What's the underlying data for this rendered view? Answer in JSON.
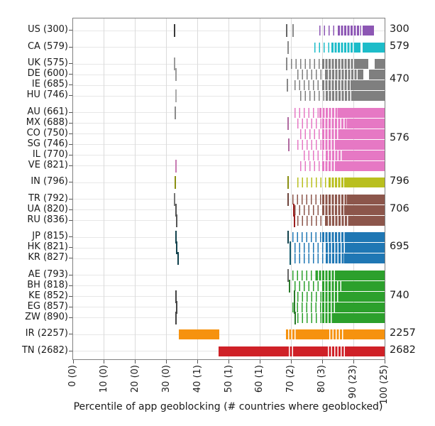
{
  "chart_data": {
    "type": "bar",
    "subtype": "horizontal-percentile-rug-strips",
    "title": "",
    "xlabel": "Percentile of app geoblocking (# countries where geoblocked)",
    "xlim": [
      0,
      100
    ],
    "grid": true,
    "x_ticks": [
      {
        "pos": 0,
        "label": "0 (0)"
      },
      {
        "pos": 10,
        "label": "10 (0)"
      },
      {
        "pos": 20,
        "label": "20 (0)"
      },
      {
        "pos": 30,
        "label": "30 (0)"
      },
      {
        "pos": 40,
        "label": "40 (1)"
      },
      {
        "pos": 50,
        "label": "50 (1)"
      },
      {
        "pos": 60,
        "label": "60 (1)"
      },
      {
        "pos": 70,
        "label": "70 (2)"
      },
      {
        "pos": 80,
        "label": "80 (3)"
      },
      {
        "pos": 90,
        "label": "90 (23)"
      },
      {
        "pos": 100,
        "label": "100 (25)"
      }
    ],
    "rows": [
      {
        "code": "US",
        "label": "US (300)",
        "apps": 300,
        "group": "US",
        "color": "#8d57b4",
        "ticks": [
          {
            "p": 32.5,
            "color": "#3a3a3a"
          },
          {
            "p": 68.5,
            "color": "#666666"
          },
          {
            "p": 70.6,
            "color": "#8a8a8a"
          }
        ],
        "segments": [
          {
            "from": 79,
            "to": 84.5,
            "style": "sparse"
          },
          {
            "from": 85,
            "to": 92.5,
            "style": "dense"
          },
          {
            "from": 93,
            "to": 96.5,
            "style": "solid"
          }
        ],
        "gaps": []
      },
      {
        "code": "CA",
        "label": "CA (579)",
        "apps": 579,
        "group": "CA",
        "color": "#1dbcc9",
        "ticks": [
          {
            "p": 69,
            "color": "#8a8a8a"
          }
        ],
        "segments": [
          {
            "from": 77.5,
            "to": 83,
            "style": "sparse"
          },
          {
            "from": 83,
            "to": 90.5,
            "style": "dense"
          },
          {
            "from": 90.5,
            "to": 100,
            "style": "solid"
          }
        ],
        "gaps": [
          {
            "from": 92.2,
            "to": 92.9
          }
        ]
      },
      {
        "code": "UK",
        "label": "UK (575)",
        "apps": 575,
        "group": "EU",
        "color": "#7f7f7f",
        "ticks": [
          {
            "p": 32.5,
            "color": "#9a9a9a"
          },
          {
            "p": 68.5,
            "color": "#888888"
          }
        ],
        "segments": [
          {
            "from": 70,
            "to": 80,
            "style": "sparse"
          },
          {
            "from": 80,
            "to": 91,
            "style": "dense"
          },
          {
            "from": 91,
            "to": 100,
            "style": "solid"
          }
        ],
        "gaps": [
          {
            "from": 94.8,
            "to": 96.8
          }
        ]
      },
      {
        "code": "DE",
        "label": "DE (600)",
        "apps": 600,
        "group": "EU",
        "color": "#7f7f7f",
        "ticks": [
          {
            "p": 33,
            "color": "#9a9a9a"
          }
        ],
        "segments": [
          {
            "from": 72,
            "to": 81,
            "style": "sparse"
          },
          {
            "from": 81,
            "to": 91.5,
            "style": "dense"
          },
          {
            "from": 91.5,
            "to": 100,
            "style": "solid"
          }
        ],
        "gaps": [
          {
            "from": 93.2,
            "to": 95
          }
        ]
      },
      {
        "code": "IE",
        "label": "IE (685)",
        "apps": 685,
        "group": "EU",
        "color": "#7f7f7f",
        "ticks": [
          {
            "p": 68.8,
            "color": "#888888"
          }
        ],
        "segments": [
          {
            "from": 71,
            "to": 80,
            "style": "sparse"
          },
          {
            "from": 80,
            "to": 89,
            "style": "dense"
          },
          {
            "from": 89,
            "to": 100,
            "style": "solid"
          }
        ],
        "gaps": []
      },
      {
        "code": "HU",
        "label": "HU (746)",
        "apps": 746,
        "group": "EU",
        "color": "#7f7f7f",
        "ticks": [
          {
            "p": 33,
            "color": "#aaaaaa"
          }
        ],
        "segments": [
          {
            "from": 73,
            "to": 81,
            "style": "sparse"
          },
          {
            "from": 81,
            "to": 90,
            "style": "dense"
          },
          {
            "from": 90,
            "to": 100,
            "style": "solid"
          }
        ],
        "gaps": []
      },
      {
        "code": "AU",
        "label": "AU (661)",
        "apps": 661,
        "group": "LATAM-APAC",
        "color": "#e678c4",
        "ticks": [
          {
            "p": 32.7,
            "color": "#8a8a8a"
          }
        ],
        "segments": [
          {
            "from": 71,
            "to": 79,
            "style": "sparse"
          },
          {
            "from": 79,
            "to": 85,
            "style": "dense"
          },
          {
            "from": 85,
            "to": 100,
            "style": "solid"
          }
        ],
        "gaps": []
      },
      {
        "code": "MX",
        "label": "MX (688)",
        "apps": 688,
        "group": "LATAM-APAC",
        "color": "#e678c4",
        "ticks": [
          {
            "p": 69,
            "color": "#b06aa0"
          }
        ],
        "segments": [
          {
            "from": 72,
            "to": 80,
            "style": "sparse"
          },
          {
            "from": 80,
            "to": 88,
            "style": "dense"
          },
          {
            "from": 88,
            "to": 100,
            "style": "solid"
          }
        ],
        "gaps": []
      },
      {
        "code": "CO",
        "label": "CO (750)",
        "apps": 750,
        "group": "LATAM-APAC",
        "color": "#e678c4",
        "ticks": [],
        "segments": [
          {
            "from": 73,
            "to": 80,
            "style": "sparse"
          },
          {
            "from": 80,
            "to": 85.5,
            "style": "dense"
          },
          {
            "from": 85.5,
            "to": 100,
            "style": "solid"
          }
        ],
        "gaps": []
      },
      {
        "code": "SG",
        "label": "SG (746)",
        "apps": 746,
        "group": "LATAM-APAC",
        "color": "#e678c4",
        "ticks": [
          {
            "p": 69.3,
            "color": "#b06aa0"
          }
        ],
        "segments": [
          {
            "from": 72,
            "to": 80,
            "style": "sparse"
          },
          {
            "from": 80,
            "to": 84.5,
            "style": "dense"
          },
          {
            "from": 84.5,
            "to": 100,
            "style": "solid"
          }
        ],
        "gaps": []
      },
      {
        "code": "IL",
        "label": "IL (770)",
        "apps": 770,
        "group": "LATAM-APAC",
        "color": "#e678c4",
        "ticks": [],
        "segments": [
          {
            "from": 74,
            "to": 81,
            "style": "sparse"
          },
          {
            "from": 81,
            "to": 86.5,
            "style": "dense"
          },
          {
            "from": 86.5,
            "to": 100,
            "style": "solid"
          }
        ],
        "gaps": []
      },
      {
        "code": "VE",
        "label": "VE (821)",
        "apps": 821,
        "group": "LATAM-APAC",
        "color": "#e678c4",
        "ticks": [
          {
            "p": 33,
            "color": "#c77ab2"
          }
        ],
        "segments": [
          {
            "from": 73,
            "to": 80,
            "style": "sparse"
          },
          {
            "from": 80,
            "to": 84,
            "style": "dense"
          },
          {
            "from": 84,
            "to": 100,
            "style": "solid"
          }
        ],
        "gaps": []
      },
      {
        "code": "IN",
        "label": "IN (796)",
        "apps": 796,
        "group": "IN",
        "color": "#b9bf1f",
        "ticks": [
          {
            "p": 32.8,
            "color": "#8a8f12"
          },
          {
            "p": 69,
            "color": "#8a8f12"
          }
        ],
        "segments": [
          {
            "from": 72,
            "to": 82,
            "style": "sparse"
          },
          {
            "from": 82,
            "to": 87,
            "style": "dense"
          },
          {
            "from": 87,
            "to": 100,
            "style": "solid"
          }
        ],
        "gaps": []
      },
      {
        "code": "TR",
        "label": "TR (792)",
        "apps": 792,
        "group": "CIS",
        "color": "#8c564b",
        "ticks": [
          {
            "p": 32.6,
            "color": "#777777"
          },
          {
            "p": 69,
            "color": "#6e443c"
          }
        ],
        "segments": [
          {
            "from": 70.5,
            "to": 80,
            "style": "sparse"
          },
          {
            "from": 80,
            "to": 88,
            "style": "dense"
          },
          {
            "from": 88,
            "to": 100,
            "style": "solid"
          }
        ],
        "gaps": []
      },
      {
        "code": "UA",
        "label": "UA (820)",
        "apps": 820,
        "group": "CIS",
        "color": "#8c564b",
        "ticks": [
          {
            "p": 33,
            "color": "#555555"
          },
          {
            "p": 70.8,
            "color": "#9c1f1f"
          }
        ],
        "segments": [
          {
            "from": 71,
            "to": 80,
            "style": "sparse"
          },
          {
            "from": 80,
            "to": 87,
            "style": "dense"
          },
          {
            "from": 87,
            "to": 100,
            "style": "solid"
          }
        ],
        "gaps": []
      },
      {
        "code": "RU",
        "label": "RU (836)",
        "apps": 836,
        "group": "CIS",
        "color": "#8c564b",
        "ticks": [
          {
            "p": 33.3,
            "color": "#555555"
          },
          {
            "p": 71,
            "color": "#9c1f1f"
          }
        ],
        "segments": [
          {
            "from": 72,
            "to": 81,
            "style": "sparse"
          },
          {
            "from": 81,
            "to": 88.5,
            "style": "dense"
          },
          {
            "from": 88.5,
            "to": 100,
            "style": "solid"
          }
        ],
        "gaps": []
      },
      {
        "code": "JP",
        "label": "JP (815)",
        "apps": 815,
        "group": "EASIA",
        "color": "#1f77b4",
        "ticks": [
          {
            "p": 33,
            "color": "#12424d"
          },
          {
            "p": 69,
            "color": "#12424d"
          }
        ],
        "segments": [
          {
            "from": 70.5,
            "to": 80,
            "style": "sparse"
          },
          {
            "from": 80,
            "to": 87.5,
            "style": "dense"
          },
          {
            "from": 87.5,
            "to": 100,
            "style": "solid"
          }
        ],
        "gaps": []
      },
      {
        "code": "HK",
        "label": "HK (821)",
        "apps": 821,
        "group": "EASIA",
        "color": "#1f77b4",
        "ticks": [
          {
            "p": 33.3,
            "color": "#12424d"
          },
          {
            "p": 69.6,
            "color": "#155e70"
          }
        ],
        "segments": [
          {
            "from": 71,
            "to": 81,
            "style": "sparse"
          },
          {
            "from": 81,
            "to": 88,
            "style": "dense"
          },
          {
            "from": 88,
            "to": 100,
            "style": "solid"
          }
        ],
        "gaps": []
      },
      {
        "code": "KR",
        "label": "KR (827)",
        "apps": 827,
        "group": "EASIA",
        "color": "#1f77b4",
        "ticks": [
          {
            "p": 33.6,
            "color": "#12424d"
          },
          {
            "p": 69.6,
            "color": "#155e70"
          }
        ],
        "segments": [
          {
            "from": 71,
            "to": 81,
            "style": "sparse"
          },
          {
            "from": 81,
            "to": 87,
            "style": "dense"
          },
          {
            "from": 87,
            "to": 100,
            "style": "solid"
          }
        ],
        "gaps": []
      },
      {
        "code": "AE",
        "label": "AE (793)",
        "apps": 793,
        "group": "MEA",
        "color": "#2ca02c",
        "ticks": [
          {
            "p": 69,
            "color": "#666666"
          }
        ],
        "segments": [
          {
            "from": 70.5,
            "to": 78,
            "style": "sparse"
          },
          {
            "from": 78,
            "to": 84.5,
            "style": "dense"
          },
          {
            "from": 84.5,
            "to": 100,
            "style": "solid"
          }
        ],
        "gaps": []
      },
      {
        "code": "BH",
        "label": "BH (818)",
        "apps": 818,
        "group": "MEA",
        "color": "#2ca02c",
        "ticks": [
          {
            "p": 69.5,
            "color": "#2a7a2a"
          }
        ],
        "segments": [
          {
            "from": 71,
            "to": 80,
            "style": "sparse"
          },
          {
            "from": 80,
            "to": 86,
            "style": "dense"
          },
          {
            "from": 86,
            "to": 100,
            "style": "solid"
          }
        ],
        "gaps": []
      },
      {
        "code": "KE",
        "label": "KE (852)",
        "apps": 852,
        "group": "MEA",
        "color": "#2ca02c",
        "ticks": [
          {
            "p": 33,
            "color": "#444444"
          },
          {
            "p": 71,
            "color": "#2a7a2a"
          }
        ],
        "segments": [
          {
            "from": 72,
            "to": 80,
            "style": "sparse"
          },
          {
            "from": 80,
            "to": 85.5,
            "style": "dense"
          },
          {
            "from": 85.5,
            "to": 100,
            "style": "solid"
          }
        ],
        "gaps": []
      },
      {
        "code": "EG",
        "label": "EG (857)",
        "apps": 857,
        "group": "MEA",
        "color": "#2ca02c",
        "ticks": [
          {
            "p": 33.2,
            "color": "#444444"
          },
          {
            "p": 71,
            "color": "#2a7a2a"
          }
        ],
        "segments": [
          {
            "from": 70.5,
            "to": 80,
            "style": "sparse"
          },
          {
            "from": 80,
            "to": 84,
            "style": "dense"
          },
          {
            "from": 84,
            "to": 100,
            "style": "solid"
          }
        ],
        "gaps": []
      },
      {
        "code": "ZW",
        "label": "ZW (890)",
        "apps": 890,
        "group": "MEA",
        "color": "#2ca02c",
        "ticks": [
          {
            "p": 33,
            "color": "#444444"
          },
          {
            "p": 71.2,
            "color": "#2a7a2a"
          }
        ],
        "segments": [
          {
            "from": 72,
            "to": 80,
            "style": "sparse"
          },
          {
            "from": 80,
            "to": 83.5,
            "style": "dense"
          },
          {
            "from": 83.5,
            "to": 100,
            "style": "solid"
          }
        ],
        "gaps": []
      },
      {
        "code": "IR",
        "label": "IR (2257)",
        "apps": 2257,
        "group": "IR",
        "color": "#f6920e",
        "ticks": [],
        "segments": [
          {
            "from": 34,
            "to": 47,
            "style": "solid"
          },
          {
            "from": 68.3,
            "to": 71.5,
            "style": "dense"
          },
          {
            "from": 71.5,
            "to": 81.5,
            "style": "solid"
          },
          {
            "from": 81.5,
            "to": 87,
            "style": "dense"
          },
          {
            "from": 87,
            "to": 100,
            "style": "solid"
          }
        ],
        "gaps": []
      },
      {
        "code": "TN",
        "label": "TN (2682)",
        "apps": 2682,
        "group": "TN",
        "color": "#cf2127",
        "ticks": [],
        "segments": [
          {
            "from": 46.8,
            "to": 68.5,
            "style": "solid"
          },
          {
            "from": 68.5,
            "to": 71,
            "style": "dense"
          },
          {
            "from": 71,
            "to": 81,
            "style": "solid"
          },
          {
            "from": 81,
            "to": 88,
            "style": "dense"
          },
          {
            "from": 88,
            "to": 100,
            "style": "solid"
          }
        ],
        "gaps": []
      }
    ],
    "group_totals": [
      {
        "group": "US",
        "rows": [
          "US"
        ],
        "value": "300"
      },
      {
        "group": "CA",
        "rows": [
          "CA"
        ],
        "value": "579"
      },
      {
        "group": "EU",
        "rows": [
          "UK",
          "DE",
          "IE",
          "HU"
        ],
        "value": "470"
      },
      {
        "group": "LATAM-APAC",
        "rows": [
          "AU",
          "MX",
          "CO",
          "SG",
          "IL",
          "VE"
        ],
        "value": "576"
      },
      {
        "group": "IN",
        "rows": [
          "IN"
        ],
        "value": "796"
      },
      {
        "group": "CIS",
        "rows": [
          "TR",
          "UA",
          "RU"
        ],
        "value": "706"
      },
      {
        "group": "EASIA",
        "rows": [
          "JP",
          "HK",
          "KR"
        ],
        "value": "695"
      },
      {
        "group": "MEA",
        "rows": [
          "AE",
          "BH",
          "KE",
          "EG",
          "ZW"
        ],
        "value": "740"
      },
      {
        "group": "IR",
        "rows": [
          "IR"
        ],
        "value": "2257"
      },
      {
        "group": "TN",
        "rows": [
          "TN"
        ],
        "value": "2682"
      }
    ],
    "style": {
      "frame_color": "#808080",
      "grid_v_color": "#dbdbdb",
      "grid_h_color": "#e7e7e7",
      "tick_color": "#555555",
      "text_color": "#1a1a1a",
      "background": "#ffffff"
    }
  }
}
